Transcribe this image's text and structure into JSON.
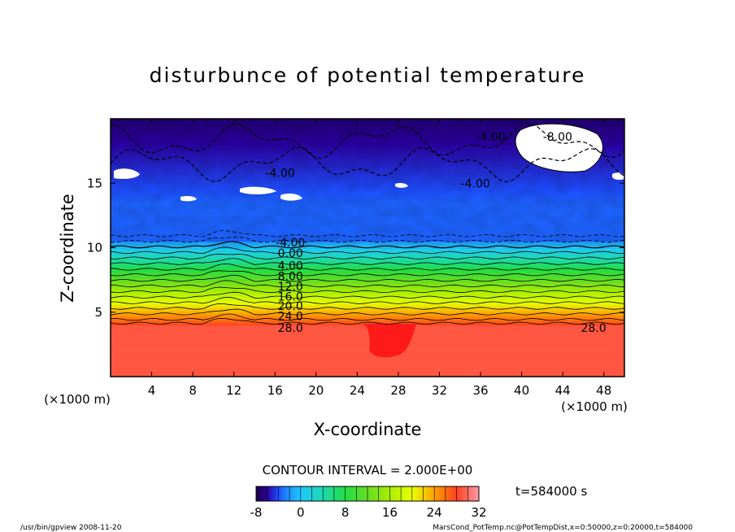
{
  "chart_data": {
    "type": "heatmap",
    "title": "disturbunce of potential temperature",
    "xlabel": "X-coordinate",
    "ylabel": "Z-coordinate",
    "x_unit": "(×1000 m)",
    "y_unit": "(×1000 m)",
    "xlim": [
      0,
      50
    ],
    "ylim": [
      0,
      20
    ],
    "x_ticks": [
      4,
      8,
      12,
      16,
      20,
      24,
      28,
      32,
      36,
      40,
      44,
      48
    ],
    "y_ticks": [
      5,
      10,
      15
    ],
    "contour_interval": "CONTOUR INTERVAL = 2.000E+00",
    "time_label": "t=584000 s",
    "colorbar": {
      "min": -8,
      "max": 32,
      "ticks": [
        -8,
        0,
        8,
        16,
        24,
        32
      ]
    },
    "contour_labels": [
      {
        "text": "-8.00",
        "x": 43.5,
        "z": 18.6
      },
      {
        "text": "-4.00",
        "x": 37.0,
        "z": 18.6
      },
      {
        "text": "-4.00",
        "x": 16.5,
        "z": 15.8
      },
      {
        "text": "-4.00",
        "x": 35.5,
        "z": 15.0
      },
      {
        "text": "-4.00",
        "x": 17.5,
        "z": 10.4
      },
      {
        "text": "0.00",
        "x": 17.5,
        "z": 9.6
      },
      {
        "text": "4.00",
        "x": 17.5,
        "z": 8.6
      },
      {
        "text": "8.00",
        "x": 17.5,
        "z": 7.8
      },
      {
        "text": "12.0",
        "x": 17.5,
        "z": 7.0
      },
      {
        "text": "16.0",
        "x": 17.5,
        "z": 6.2
      },
      {
        "text": "20.0",
        "x": 17.5,
        "z": 5.5
      },
      {
        "text": "24.0",
        "x": 17.5,
        "z": 4.7
      },
      {
        "text": "28.0",
        "x": 17.5,
        "z": 3.8
      },
      {
        "text": "28.0",
        "x": 47.0,
        "z": 3.8
      }
    ],
    "field_description": {
      "stable_layer_below_z_km": 4,
      "stable_layer_value": 29,
      "gradient_from_z_km": [
        4,
        10.5
      ],
      "upper_layer_range": [
        -8,
        -2
      ]
    }
  },
  "footer": {
    "left": "/usr/bin/gpview  2008-11-20",
    "right": "MarsCond_PotTemp.nc@PotTempDist,x=0:50000,z=0:20000,t=584000"
  }
}
